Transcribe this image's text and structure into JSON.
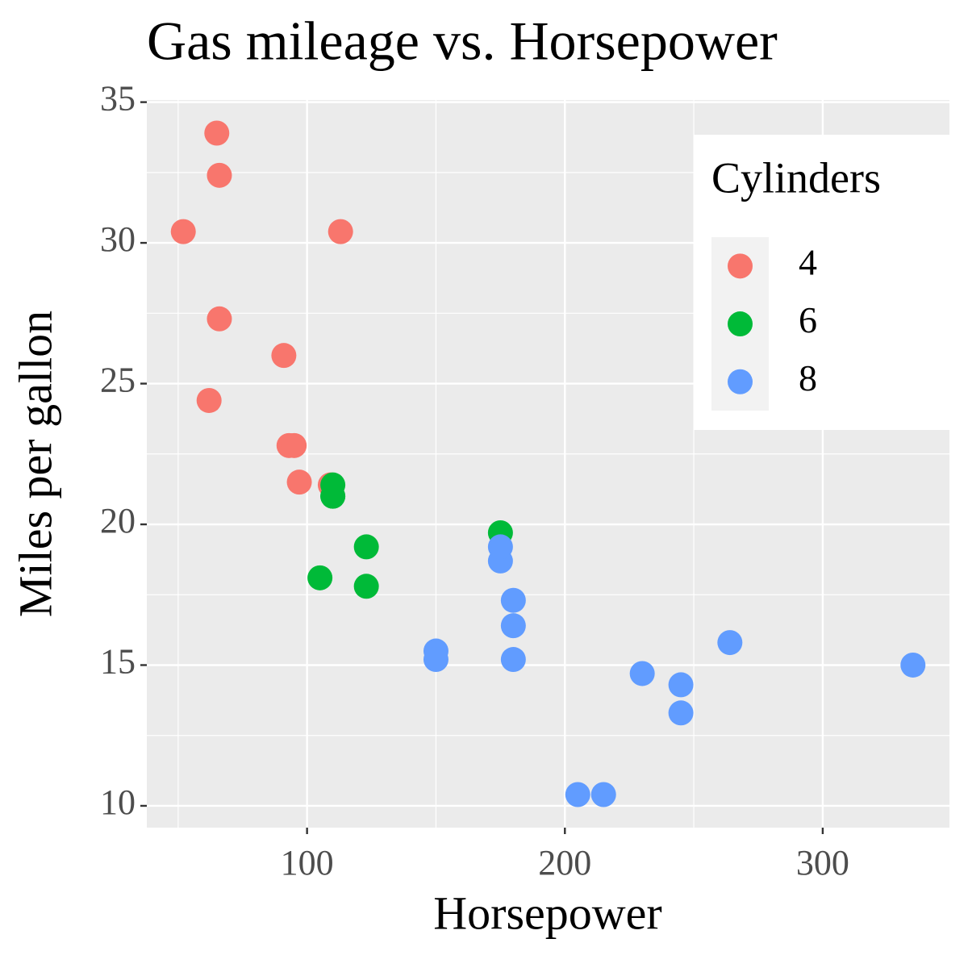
{
  "chart_data": {
    "type": "scatter",
    "title": "Gas mileage vs. Horsepower",
    "x_label": "Horsepower",
    "y_label": "Miles per gallon",
    "legend_title": "Cylinders",
    "legend_position": "top-right",
    "xlim": [
      37.85,
      349.15
    ],
    "ylim": [
      9.225,
      35.075
    ],
    "xticks": [
      100,
      200,
      300
    ],
    "yticks": [
      10,
      15,
      20,
      25,
      30,
      35
    ],
    "x_minor_ticks": [
      50,
      150,
      250
    ],
    "y_minor_ticks": [
      12.5,
      17.5,
      22.5,
      27.5,
      32.5
    ],
    "grid": true,
    "series": [
      {
        "name": "4",
        "color": "#F8766D",
        "x": [
          93,
          62,
          95,
          66,
          52,
          65,
          97,
          66,
          91,
          113,
          109
        ],
        "y": [
          22.8,
          24.4,
          22.8,
          32.4,
          30.4,
          33.9,
          21.5,
          27.3,
          26.0,
          30.4,
          21.4
        ]
      },
      {
        "name": "6",
        "color": "#00BA38",
        "x": [
          110,
          110,
          110,
          105,
          123,
          123,
          175
        ],
        "y": [
          21.0,
          21.0,
          21.4,
          18.1,
          19.2,
          17.8,
          19.7
        ]
      },
      {
        "name": "8",
        "color": "#619CFF",
        "x": [
          175,
          245,
          180,
          180,
          180,
          205,
          215,
          230,
          150,
          150,
          245,
          175,
          264,
          335
        ],
        "y": [
          18.7,
          14.3,
          16.4,
          17.3,
          15.2,
          10.4,
          10.4,
          14.7,
          15.5,
          15.2,
          13.3,
          19.2,
          15.8,
          15.0
        ]
      }
    ]
  }
}
